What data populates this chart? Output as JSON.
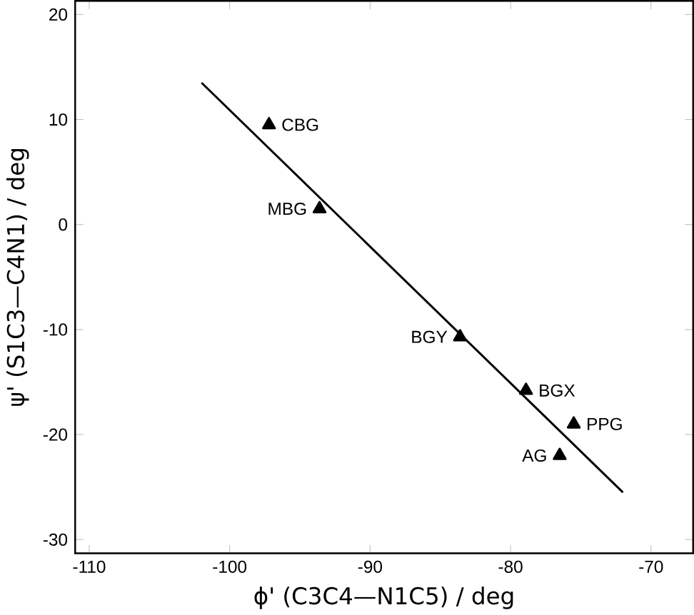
{
  "chart_data": {
    "type": "scatter",
    "xlabel": "ϕ' (C3C4—N1C5) / deg",
    "ylabel": "ψ' (S1C3—C4N1) / deg",
    "xlim": [
      -111,
      -67
    ],
    "ylim": [
      -31.3,
      21.3
    ],
    "xticks": [
      -110,
      -100,
      -90,
      -80,
      -70
    ],
    "yticks": [
      -30,
      -20,
      -10,
      0,
      10,
      20
    ],
    "marker": "triangle",
    "series": [
      {
        "color": "#000000",
        "x": [
          -97.2,
          -93.6,
          -83.6,
          -78.9,
          -75.5,
          -76.5
        ],
        "values": [
          9.5,
          1.5,
          -10.7,
          -15.8,
          -19,
          -22
        ]
      },
      {
        "type": "line",
        "color": "#000000",
        "marker": "none",
        "x": [
          -102,
          -72
        ],
        "values": [
          13.5,
          -25.5
        ]
      }
    ],
    "annotations": [
      {
        "text": "CBG",
        "x": -97.2,
        "y": 9.5
      },
      {
        "text": "MBG",
        "x": -93.6,
        "y": 1.5
      },
      {
        "text": "BGY",
        "x": -83.6,
        "y": -10.7
      },
      {
        "text": "BGX",
        "x": -78.9,
        "y": -15.8
      },
      {
        "text": "PPG",
        "x": -75.5,
        "y": -19
      },
      {
        "text": "AG",
        "x": -76.5,
        "y": -22
      }
    ]
  }
}
